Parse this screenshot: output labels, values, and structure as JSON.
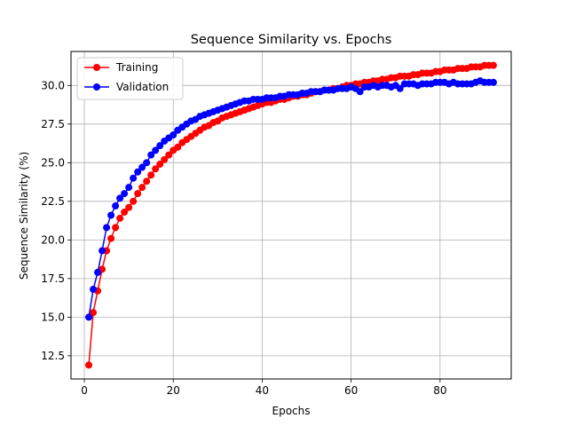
{
  "chart_data": {
    "type": "line",
    "title": "Sequence Similarity vs. Epochs",
    "xlabel": "Epochs",
    "ylabel": "Sequence Similarity (%)",
    "xlim": [
      -3,
      96
    ],
    "ylim": [
      11,
      32.2
    ],
    "xticks": [
      0,
      20,
      40,
      60,
      80
    ],
    "yticks": [
      12.5,
      15.0,
      17.5,
      20.0,
      22.5,
      25.0,
      27.5,
      30.0
    ],
    "grid": true,
    "legend_position": "top-left",
    "series": [
      {
        "name": "Training",
        "color": "#ff0000",
        "marker": "circle",
        "x": [
          1,
          2,
          3,
          4,
          5,
          6,
          7,
          8,
          9,
          10,
          11,
          12,
          13,
          14,
          15,
          16,
          17,
          18,
          19,
          20,
          21,
          22,
          23,
          24,
          25,
          26,
          27,
          28,
          29,
          30,
          31,
          32,
          33,
          34,
          35,
          36,
          37,
          38,
          39,
          40,
          41,
          42,
          43,
          44,
          45,
          46,
          47,
          48,
          49,
          50,
          51,
          52,
          53,
          54,
          55,
          56,
          57,
          58,
          59,
          60,
          61,
          62,
          63,
          64,
          65,
          66,
          67,
          68,
          69,
          70,
          71,
          72,
          73,
          74,
          75,
          76,
          77,
          78,
          79,
          80,
          81,
          82,
          83,
          84,
          85,
          86,
          87,
          88,
          89,
          90,
          91,
          92
        ],
        "y": [
          11.9,
          15.3,
          16.7,
          18.1,
          19.3,
          20.1,
          20.8,
          21.4,
          21.8,
          22.1,
          22.5,
          23.0,
          23.4,
          23.8,
          24.2,
          24.6,
          24.9,
          25.2,
          25.5,
          25.8,
          26.0,
          26.3,
          26.5,
          26.7,
          26.9,
          27.1,
          27.3,
          27.4,
          27.6,
          27.7,
          27.9,
          28.0,
          28.1,
          28.2,
          28.3,
          28.4,
          28.5,
          28.6,
          28.7,
          28.8,
          28.9,
          28.9,
          29.0,
          29.1,
          29.1,
          29.2,
          29.3,
          29.3,
          29.4,
          29.4,
          29.5,
          29.6,
          29.6,
          29.7,
          29.7,
          29.8,
          29.8,
          29.9,
          30.0,
          30.0,
          30.1,
          30.1,
          30.2,
          30.2,
          30.3,
          30.3,
          30.4,
          30.4,
          30.5,
          30.5,
          30.6,
          30.6,
          30.6,
          30.7,
          30.7,
          30.8,
          30.8,
          30.8,
          30.9,
          30.9,
          31.0,
          31.0,
          31.0,
          31.1,
          31.1,
          31.1,
          31.2,
          31.2,
          31.2,
          31.3,
          31.3,
          31.3
        ]
      },
      {
        "name": "Validation",
        "color": "#0000ff",
        "marker": "circle",
        "x": [
          1,
          2,
          3,
          4,
          5,
          6,
          7,
          8,
          9,
          10,
          11,
          12,
          13,
          14,
          15,
          16,
          17,
          18,
          19,
          20,
          21,
          22,
          23,
          24,
          25,
          26,
          27,
          28,
          29,
          30,
          31,
          32,
          33,
          34,
          35,
          36,
          37,
          38,
          39,
          40,
          41,
          42,
          43,
          44,
          45,
          46,
          47,
          48,
          49,
          50,
          51,
          52,
          53,
          54,
          55,
          56,
          57,
          58,
          59,
          60,
          61,
          62,
          63,
          64,
          65,
          66,
          67,
          68,
          69,
          70,
          71,
          72,
          73,
          74,
          75,
          76,
          77,
          78,
          79,
          80,
          81,
          82,
          83,
          84,
          85,
          86,
          87,
          88,
          89,
          90,
          91,
          92
        ],
        "y": [
          15.0,
          16.8,
          17.9,
          19.3,
          20.8,
          21.6,
          22.2,
          22.7,
          23.0,
          23.4,
          24.0,
          24.4,
          24.7,
          25.0,
          25.5,
          25.8,
          26.1,
          26.4,
          26.6,
          26.8,
          27.1,
          27.3,
          27.5,
          27.7,
          27.8,
          28.0,
          28.1,
          28.2,
          28.3,
          28.4,
          28.5,
          28.6,
          28.7,
          28.8,
          28.9,
          29.0,
          29.0,
          29.1,
          29.1,
          29.1,
          29.2,
          29.2,
          29.2,
          29.3,
          29.3,
          29.4,
          29.4,
          29.4,
          29.5,
          29.5,
          29.6,
          29.6,
          29.6,
          29.7,
          29.7,
          29.7,
          29.8,
          29.8,
          29.8,
          29.9,
          29.8,
          29.6,
          29.9,
          29.9,
          30.0,
          29.9,
          30.0,
          30.0,
          29.9,
          30.0,
          29.8,
          30.1,
          30.1,
          30.1,
          30.0,
          30.1,
          30.1,
          30.1,
          30.2,
          30.2,
          30.2,
          30.1,
          30.2,
          30.1,
          30.1,
          30.1,
          30.1,
          30.2,
          30.3,
          30.2,
          30.2,
          30.2
        ]
      }
    ]
  }
}
